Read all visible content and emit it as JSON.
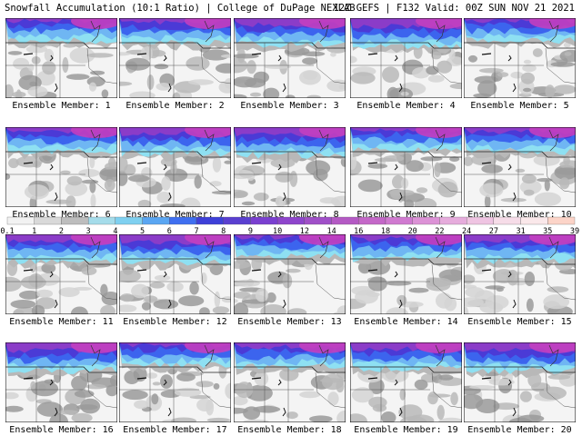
{
  "header": {
    "title": "Snowfall Accumulation (10:1 Ratio) | College of DuPage NEXLAB",
    "run_info": "12Z GEFS | F132 Valid: 00Z SUN NOV 21 2021"
  },
  "panels": [
    {
      "label": "Ensemble Member: 1"
    },
    {
      "label": "Ensemble Member: 2"
    },
    {
      "label": "Ensemble Member: 3"
    },
    {
      "label": "Ensemble Member: 4"
    },
    {
      "label": "Ensemble Member: 5"
    },
    {
      "label": "Ensemble Member: 6"
    },
    {
      "label": "Ensemble Member: 7"
    },
    {
      "label": "Ensemble Member: 8"
    },
    {
      "label": "Ensemble Member: 9"
    },
    {
      "label": "Ensemble Member: 10"
    },
    {
      "label": "Ensemble Member: 11"
    },
    {
      "label": "Ensemble Member: 12"
    },
    {
      "label": "Ensemble Member: 13"
    },
    {
      "label": "Ensemble Member: 14"
    },
    {
      "label": "Ensemble Member: 15"
    },
    {
      "label": "Ensemble Member: 16"
    },
    {
      "label": "Ensemble Member: 17"
    },
    {
      "label": "Ensemble Member: 18"
    },
    {
      "label": "Ensemble Member: 19"
    },
    {
      "label": "Ensemble Member: 20"
    }
  ],
  "colorbar": {
    "ticks": [
      "0.1",
      "1",
      "2",
      "3",
      "4",
      "5",
      "6",
      "7",
      "8",
      "9",
      "10",
      "12",
      "14",
      "16",
      "18",
      "20",
      "22",
      "24",
      "27",
      "31",
      "35",
      "39"
    ],
    "colors": [
      "#f2f2f2",
      "#d9d9d9",
      "#bdbdbd",
      "#a5dcea",
      "#7fd0f0",
      "#5aa6f2",
      "#3f6ff0",
      "#3e40d8",
      "#5a3fd0",
      "#7a3fd0",
      "#8e45cc",
      "#a050c8",
      "#b45ac4",
      "#c468c8",
      "#d07ad0",
      "#dc92d6",
      "#e6acdc",
      "#efc4e2",
      "#f6dce8",
      "#fae8ea",
      "#fcd4c8"
    ],
    "colors_note": ""
  },
  "map_colors": {
    "land": "#f4f4f4",
    "gray_light": "#d4d4d4",
    "gray_mid": "#b8b8b8",
    "gray_dark": "#9a9a9a",
    "cyan": "#8ee0f2",
    "blue_light": "#6fb6f3",
    "blue": "#3c64ee",
    "indigo": "#4b3ad6",
    "purple": "#8b3cc8",
    "magenta": "#c23fc0"
  }
}
